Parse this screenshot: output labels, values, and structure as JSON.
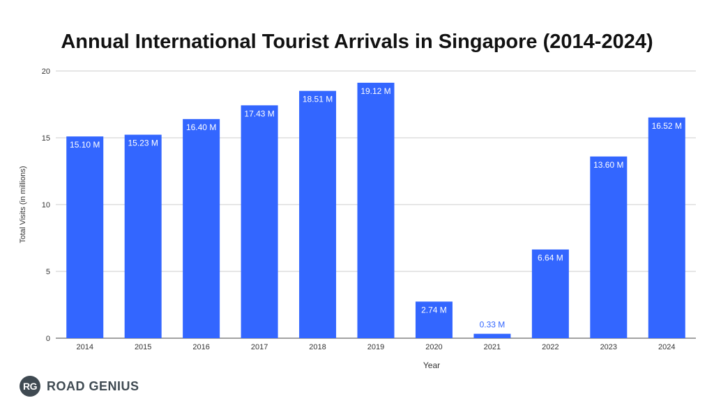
{
  "brand": {
    "badge": "RG",
    "name": "ROAD GENIUS"
  },
  "colors": {
    "bar": "#3366ff",
    "bar_label_inside": "#ffffff",
    "bar_label_outside": "#3366ff",
    "grid": "#cccccc"
  },
  "chart_data": {
    "type": "bar",
    "title": "Annual International Tourist Arrivals in Singapore (2014-2024)",
    "xlabel": "Year",
    "ylabel": "Total Visits (in millions)",
    "ylim": [
      0,
      20
    ],
    "yticks": [
      "0",
      "5",
      "10",
      "15",
      "20"
    ],
    "grid": true,
    "legend": "none",
    "categories": [
      "2014",
      "2015",
      "2016",
      "2017",
      "2018",
      "2019",
      "2020",
      "2021",
      "2022",
      "2023",
      "2024"
    ],
    "values": [
      15.1,
      15.23,
      16.4,
      17.43,
      18.51,
      19.12,
      2.74,
      0.33,
      6.64,
      13.6,
      16.52
    ],
    "data_labels": [
      "15.10 M",
      "15.23 M",
      "16.40 M",
      "17.43 M",
      "18.51 M",
      "19.12 M",
      "2.74 M",
      "0.33 M",
      "6.64 M",
      "13.60 M",
      "16.52 M"
    ]
  }
}
